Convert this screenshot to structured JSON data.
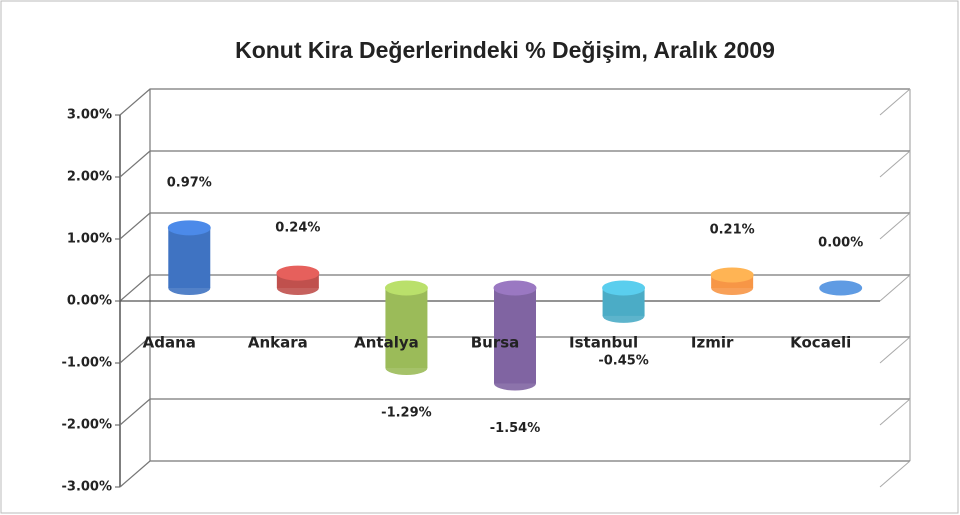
{
  "chart_data": {
    "type": "bar3d",
    "title": "Konut Kira Değerlerindeki % Değişim, Aralık 2009",
    "categories": [
      "Adana",
      "Ankara",
      "Antalya",
      "Bursa",
      "Istanbul",
      "Izmir",
      "Kocaeli"
    ],
    "values": [
      0.97,
      0.24,
      -1.29,
      -1.54,
      -0.45,
      0.21,
      0.0
    ],
    "value_labels": [
      "0.97%",
      "0.24%",
      "-1.29%",
      "-1.54%",
      "-0.45%",
      "0.21%",
      "0.00%"
    ],
    "colors": [
      "#3f73c2",
      "#c0504d",
      "#9bbb59",
      "#8064a2",
      "#4bacc6",
      "#f79646",
      "#4f81bd"
    ],
    "ylim": [
      -3,
      3
    ],
    "yticks": [
      {
        "value": -3,
        "label": "-3.00%"
      },
      {
        "value": -2,
        "label": "-2.00%"
      },
      {
        "value": -1,
        "label": "-1.00%"
      },
      {
        "value": 0,
        "label": "0.00%"
      },
      {
        "value": 1,
        "label": "1.00%"
      },
      {
        "value": 2,
        "label": "2.00%"
      },
      {
        "value": 3,
        "label": "3.00%"
      }
    ],
    "grid": true
  }
}
